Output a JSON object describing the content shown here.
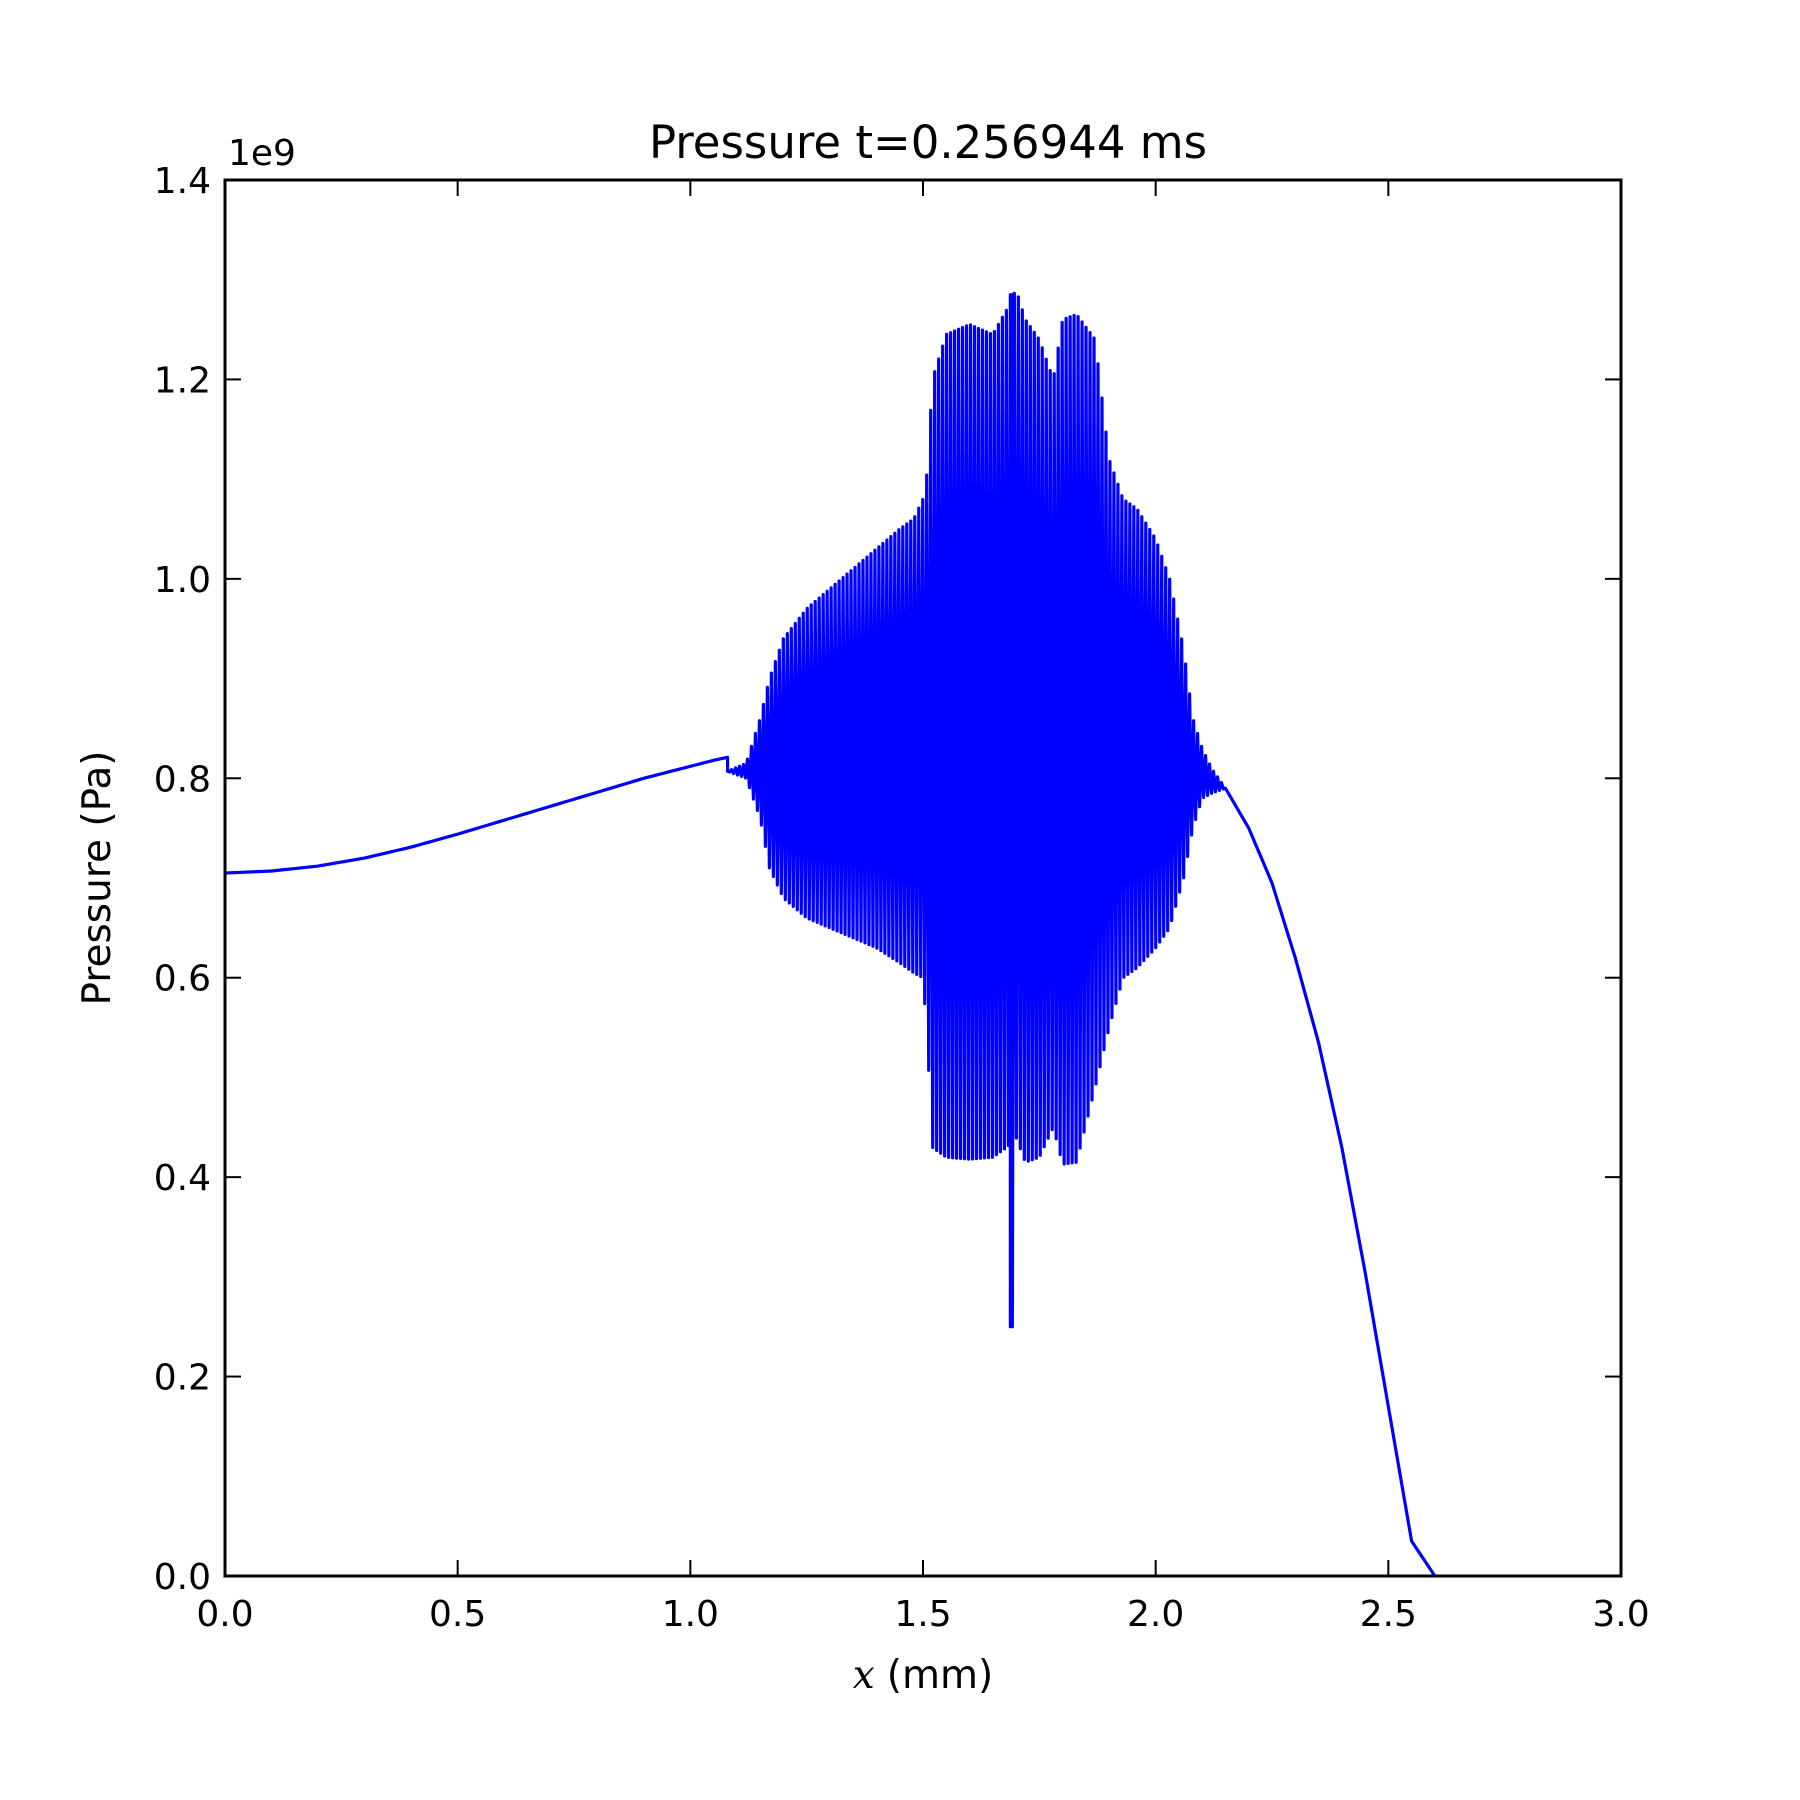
{
  "chart_data": {
    "type": "line",
    "title": "Pressure t=0.256944 ms",
    "xlabel_var": "x",
    "xlabel_unit": "(mm)",
    "ylabel": "Pressure (Pa)",
    "y_offset_text": "1e9",
    "xlim": [
      0.0,
      3.0
    ],
    "ylim": [
      0.0,
      1.4
    ],
    "x_ticks": [
      "0.0",
      "0.5",
      "1.0",
      "1.5",
      "2.0",
      "2.5",
      "3.0"
    ],
    "y_ticks": [
      "0.0",
      "0.2",
      "0.4",
      "0.6",
      "0.8",
      "1.0",
      "1.2",
      "1.4"
    ],
    "grid": false,
    "line_color": "#0000ff",
    "series": [
      {
        "smooth_left": {
          "x": [
            0.0,
            0.1,
            0.2,
            0.3,
            0.4,
            0.5,
            0.6,
            0.7,
            0.8,
            0.9,
            1.0,
            1.05,
            1.08
          ],
          "y": [
            0.705,
            0.707,
            0.712,
            0.72,
            0.731,
            0.744,
            0.758,
            0.772,
            0.786,
            0.8,
            0.812,
            0.818,
            0.821
          ]
        },
        "oscillation": {
          "x_start": 1.08,
          "x_end": 2.15,
          "cycles": 125,
          "envelope": {
            "x": [
              1.08,
              1.12,
              1.15,
              1.17,
              1.2,
              1.25,
              1.3,
              1.35,
              1.4,
              1.45,
              1.48,
              1.5,
              1.51,
              1.52,
              1.55,
              1.6,
              1.65,
              1.68,
              1.7,
              1.72,
              1.75,
              1.78,
              1.8,
              1.83,
              1.87,
              1.9,
              1.93,
              1.96,
              2.0,
              2.03,
              2.06,
              2.08,
              2.1,
              2.12,
              2.15
            ],
            "upper": [
              0.807,
              0.815,
              0.86,
              0.9,
              0.94,
              0.97,
              0.99,
              1.01,
              1.03,
              1.05,
              1.06,
              1.08,
              1.11,
              1.2,
              1.245,
              1.255,
              1.245,
              1.27,
              1.29,
              1.26,
              1.24,
              1.2,
              1.26,
              1.265,
              1.24,
              1.12,
              1.08,
              1.07,
              1.04,
              1.0,
              0.93,
              0.86,
              0.83,
              0.81,
              0.79
            ],
            "lower": [
              0.807,
              0.8,
              0.76,
              0.71,
              0.68,
              0.66,
              0.65,
              0.64,
              0.63,
              0.615,
              0.605,
              0.6,
              0.53,
              0.43,
              0.42,
              0.418,
              0.42,
              0.43,
              0.44,
              0.415,
              0.42,
              0.45,
              0.413,
              0.415,
              0.49,
              0.55,
              0.6,
              0.61,
              0.63,
              0.65,
              0.7,
              0.75,
              0.78,
              0.785,
              0.79
            ]
          },
          "spike": {
            "x": 1.69,
            "min": 0.25,
            "max": 1.285
          }
        },
        "smooth_right": {
          "x": [
            2.15,
            2.2,
            2.25,
            2.3,
            2.35,
            2.4,
            2.45,
            2.5,
            2.55,
            2.6,
            2.607
          ],
          "y": [
            0.79,
            0.75,
            0.695,
            0.62,
            0.535,
            0.43,
            0.305,
            0.17,
            0.035,
            0.0,
            0.0
          ]
        }
      }
    ]
  }
}
